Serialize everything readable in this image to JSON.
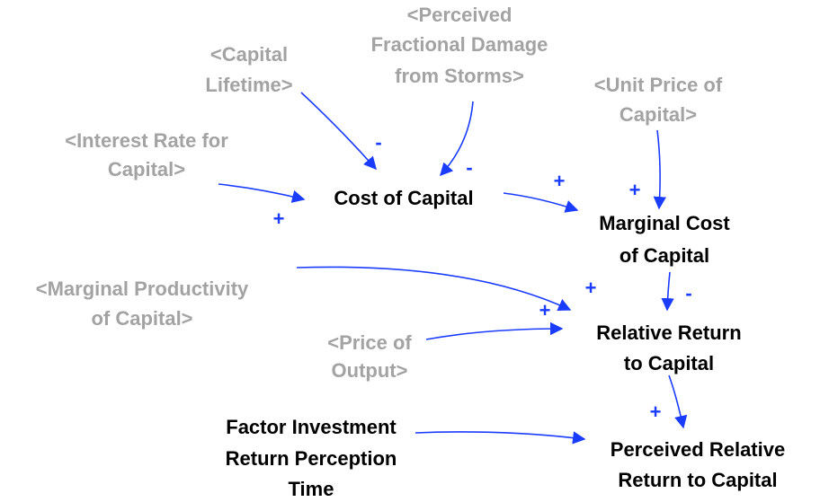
{
  "nodes": [
    {
      "lines": [
        "<Capital",
        "Lifetime>"
      ]
    },
    {
      "lines": [
        "<Perceived",
        "Fractional Damage",
        "from Storms>"
      ]
    },
    {
      "lines": [
        "<Unit Price of",
        "Capital>"
      ]
    },
    {
      "lines": [
        "<Interest Rate for",
        "Capital>"
      ]
    },
    {
      "lines": [
        "Cost of Capital"
      ]
    },
    {
      "lines": [
        "Marginal Cost",
        "of Capital"
      ]
    },
    {
      "lines": [
        "<Marginal Productivity",
        "of Capital>"
      ]
    },
    {
      "lines": [
        "<Price of",
        "Output>"
      ]
    },
    {
      "lines": [
        "Relative Return",
        "to Capital"
      ]
    },
    {
      "lines": [
        "Factor Investment",
        "Return Perception",
        "Time"
      ]
    },
    {
      "lines": [
        "Perceived Relative",
        "Return to Capital"
      ]
    }
  ],
  "edges": [
    {
      "polarity": "-"
    },
    {
      "polarity": "-"
    },
    {
      "polarity": "+"
    },
    {
      "polarity": "+"
    },
    {
      "polarity": "+"
    },
    {
      "polarity": "-"
    },
    {
      "polarity": "+"
    },
    {
      "polarity": "+"
    },
    {
      "polarity": "+"
    }
  ]
}
